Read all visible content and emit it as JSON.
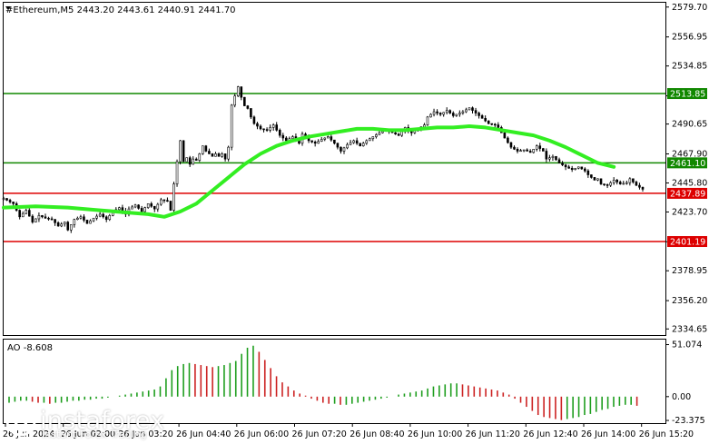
{
  "header": {
    "symbol": "#Ethereum,M5",
    "ohlc": "2443.20 2443.61 2440.91 2441.70"
  },
  "colors": {
    "candle": "#000000",
    "ma": "#33ee22",
    "support_line": "#dd0000",
    "resistance_line": "#118800",
    "ao_up": "#1e9e1e",
    "ao_down": "#cc2222"
  },
  "chart_data": [
    {
      "type": "candlestick",
      "title": "#Ethereum,M5 2443.20 2443.61 2440.91 2441.70",
      "ylim": [
        2330,
        2583
      ],
      "y_ticks": [
        2579.7,
        2556.95,
        2534.85,
        2512.1,
        2490.65,
        2467.9,
        2445.8,
        2423.7,
        2401.05,
        2378.95,
        2356.2,
        2334.65
      ],
      "x_ticks": [
        "26 Jun 2024",
        "26 Jun 02:00",
        "26 Jun 03:20",
        "26 Jun 04:40",
        "26 Jun 06:00",
        "26 Jun 07:20",
        "26 Jun 08:40",
        "26 Jun 10:00",
        "26 Jun 11:20",
        "26 Jun 12:40",
        "26 Jun 14:00",
        "26 Jun 15:20"
      ],
      "horizontal_levels": [
        {
          "value": 2513.85,
          "label": "2513.85",
          "color": "#118800"
        },
        {
          "value": 2461.1,
          "label": "2461.10",
          "color": "#118800"
        },
        {
          "value": 2437.89,
          "label": "2437.89",
          "color": "#dd0000"
        },
        {
          "value": 2401.19,
          "label": "2401.19",
          "color": "#dd0000"
        }
      ],
      "close_path": [
        [
          0,
          2434
        ],
        [
          6,
          2430
        ],
        [
          10,
          2420
        ],
        [
          14,
          2425
        ],
        [
          18,
          2416
        ],
        [
          22,
          2421
        ],
        [
          26,
          2419
        ],
        [
          30,
          2418
        ],
        [
          34,
          2413
        ],
        [
          38,
          2416
        ],
        [
          40,
          2410
        ],
        [
          44,
          2418
        ],
        [
          48,
          2420
        ],
        [
          52,
          2415
        ],
        [
          56,
          2419
        ],
        [
          60,
          2422
        ],
        [
          64,
          2418
        ],
        [
          68,
          2424
        ],
        [
          72,
          2427
        ],
        [
          76,
          2422
        ],
        [
          78,
          2426
        ],
        [
          82,
          2429
        ],
        [
          86,
          2424
        ],
        [
          90,
          2430
        ],
        [
          94,
          2426
        ],
        [
          98,
          2433
        ],
        [
          102,
          2432
        ],
        [
          104,
          2425
        ],
        [
          106,
          2445
        ],
        [
          108,
          2462
        ],
        [
          110,
          2478
        ],
        [
          112,
          2462
        ],
        [
          114,
          2465
        ],
        [
          116,
          2460
        ],
        [
          118,
          2464
        ],
        [
          120,
          2463
        ],
        [
          122,
          2468
        ],
        [
          124,
          2474
        ],
        [
          126,
          2470
        ],
        [
          128,
          2468
        ],
        [
          130,
          2466
        ],
        [
          132,
          2468
        ],
        [
          134,
          2466
        ],
        [
          136,
          2468
        ],
        [
          138,
          2464
        ],
        [
          140,
          2473
        ],
        [
          142,
          2505
        ],
        [
          144,
          2512
        ],
        [
          145,
          2520
        ],
        [
          147,
          2518
        ],
        [
          149,
          2504
        ],
        [
          151,
          2505
        ],
        [
          153,
          2500
        ],
        [
          155,
          2492
        ],
        [
          157,
          2490
        ],
        [
          160,
          2487
        ],
        [
          164,
          2486
        ],
        [
          168,
          2490
        ],
        [
          172,
          2482
        ],
        [
          176,
          2478
        ],
        [
          180,
          2481
        ],
        [
          184,
          2476
        ],
        [
          186,
          2483
        ],
        [
          190,
          2478
        ],
        [
          194,
          2476
        ],
        [
          198,
          2479
        ],
        [
          202,
          2481
        ],
        [
          206,
          2476
        ],
        [
          210,
          2470
        ],
        [
          214,
          2475
        ],
        [
          218,
          2478
        ],
        [
          222,
          2474
        ],
        [
          226,
          2478
        ],
        [
          230,
          2481
        ],
        [
          234,
          2484
        ],
        [
          238,
          2486
        ],
        [
          242,
          2484
        ],
        [
          246,
          2482
        ],
        [
          250,
          2488
        ],
        [
          254,
          2484
        ],
        [
          258,
          2487
        ],
        [
          262,
          2490
        ],
        [
          264,
          2496
        ],
        [
          268,
          2500
        ],
        [
          272,
          2498
        ],
        [
          276,
          2501
        ],
        [
          280,
          2497
        ],
        [
          282,
          2498
        ],
        [
          286,
          2500
        ],
        [
          290,
          2503
        ],
        [
          294,
          2499
        ],
        [
          298,
          2495
        ],
        [
          302,
          2491
        ],
        [
          306,
          2490
        ],
        [
          308,
          2488
        ],
        [
          312,
          2480
        ],
        [
          316,
          2473
        ],
        [
          320,
          2470
        ],
        [
          324,
          2471
        ],
        [
          328,
          2469
        ],
        [
          332,
          2474
        ],
        [
          336,
          2470
        ],
        [
          338,
          2464
        ],
        [
          342,
          2466
        ],
        [
          346,
          2461
        ],
        [
          350,
          2458
        ],
        [
          354,
          2456
        ],
        [
          358,
          2458
        ],
        [
          362,
          2455
        ],
        [
          364,
          2452
        ],
        [
          368,
          2448
        ],
        [
          370,
          2449
        ],
        [
          372,
          2445
        ],
        [
          376,
          2444
        ],
        [
          380,
          2448
        ],
        [
          384,
          2445
        ],
        [
          388,
          2446
        ],
        [
          390,
          2449
        ],
        [
          394,
          2444
        ],
        [
          398,
          2441
        ]
      ],
      "ma_path": [
        [
          0,
          2427
        ],
        [
          20,
          2428
        ],
        [
          40,
          2427
        ],
        [
          60,
          2425
        ],
        [
          80,
          2423
        ],
        [
          90,
          2422
        ],
        [
          100,
          2420
        ],
        [
          110,
          2424
        ],
        [
          120,
          2430
        ],
        [
          130,
          2440
        ],
        [
          140,
          2450
        ],
        [
          150,
          2460
        ],
        [
          160,
          2468
        ],
        [
          170,
          2474
        ],
        [
          180,
          2478
        ],
        [
          190,
          2481
        ],
        [
          200,
          2483
        ],
        [
          210,
          2485
        ],
        [
          220,
          2487
        ],
        [
          230,
          2487
        ],
        [
          240,
          2486
        ],
        [
          250,
          2486
        ],
        [
          260,
          2487
        ],
        [
          270,
          2488
        ],
        [
          280,
          2488
        ],
        [
          290,
          2489
        ],
        [
          300,
          2488
        ],
        [
          310,
          2486
        ],
        [
          320,
          2484
        ],
        [
          330,
          2482
        ],
        [
          340,
          2478
        ],
        [
          350,
          2473
        ],
        [
          360,
          2467
        ],
        [
          370,
          2461
        ],
        [
          380,
          2458
        ]
      ]
    },
    {
      "type": "bar",
      "title": "AO -8.608",
      "ylim": [
        -26,
        56
      ],
      "y_ticks": [
        51.074,
        0.0,
        -23.375
      ],
      "series": [
        {
          "name": "AO",
          "values": [
            -6,
            -5,
            -4,
            -4,
            -5,
            -6,
            -6,
            -7,
            -6,
            -6,
            -5,
            -4,
            -4,
            -3,
            -3,
            -2,
            -2,
            -1,
            0,
            1,
            2,
            3,
            4,
            5,
            6,
            7,
            10,
            18,
            26,
            30,
            32,
            33,
            32,
            31,
            30,
            29,
            30,
            31,
            33,
            35,
            42,
            48,
            50,
            44,
            36,
            28,
            20,
            14,
            10,
            6,
            3,
            1,
            -2,
            -4,
            -6,
            -7,
            -7,
            -8,
            -8,
            -7,
            -6,
            -5,
            -4,
            -3,
            -2,
            -1,
            0,
            2,
            3,
            4,
            5,
            6,
            8,
            10,
            11,
            12,
            13,
            13,
            12,
            11,
            10,
            9,
            8,
            7,
            6,
            4,
            2,
            -2,
            -6,
            -10,
            -14,
            -18,
            -20,
            -21,
            -22,
            -23,
            -22,
            -21,
            -20,
            -18,
            -17,
            -15,
            -13,
            -12,
            -10,
            -9,
            -8,
            -8,
            -9
          ]
        }
      ]
    }
  ],
  "logo": {
    "brand": "instaforex",
    "tagline": "Instant Forex Trading"
  }
}
